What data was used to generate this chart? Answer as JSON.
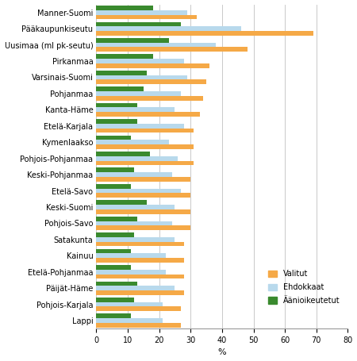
{
  "categories": [
    "Manner-Suomi",
    "Pääkaupunkiseutu",
    "Uusimaa (ml pk-seutu)",
    "Pirkanmaa",
    "Varsinais-Suomi",
    "Pohjanmaa",
    "Kanta-Häme",
    "Etelä-Karjala",
    "Kymenlaakso",
    "Pohjois-Pohjanmaa",
    "Keski-Pohjanmaa",
    "Etelä-Savo",
    "Keski-Suomi",
    "Pohjois-Savo",
    "Satakunta",
    "Kainuu",
    "Etelä-Pohjanmaa",
    "Päijät-Häme",
    "Pohjois-Karjala",
    "Lappi"
  ],
  "valitut": [
    32,
    69,
    48,
    36,
    35,
    34,
    33,
    31,
    31,
    31,
    30,
    30,
    30,
    30,
    28,
    28,
    28,
    28,
    27,
    27
  ],
  "ehdokkaat": [
    29,
    46,
    38,
    28,
    29,
    27,
    25,
    28,
    23,
    26,
    24,
    27,
    25,
    24,
    25,
    22,
    22,
    25,
    21,
    21
  ],
  "aanioikeutetut": [
    18,
    27,
    23,
    18,
    16,
    15,
    13,
    13,
    11,
    17,
    12,
    11,
    16,
    13,
    12,
    11,
    11,
    13,
    12,
    11
  ],
  "color_valitut": "#f5a947",
  "color_ehdokkaat": "#b8d9ec",
  "color_aanioikeutetut": "#3a8a2e",
  "xlabel": "%",
  "xlim": [
    0,
    80
  ],
  "xticks": [
    0,
    10,
    20,
    30,
    40,
    50,
    60,
    70,
    80
  ],
  "legend_labels": [
    "Valitut",
    "Ehdokkaat",
    "Äänioikeutetut"
  ],
  "bar_height": 0.28,
  "grid_color": "#c0c0c0",
  "background_color": "#ffffff",
  "label_fontsize": 7,
  "tick_fontsize": 7
}
